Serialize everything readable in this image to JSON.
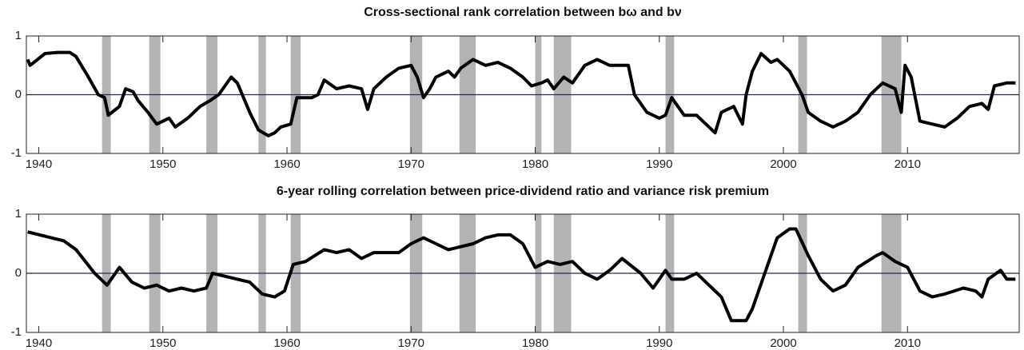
{
  "chart_data": [
    {
      "type": "line",
      "title": "Cross-sectional rank correlation between bω and bν",
      "x": [
        1939.1,
        1939.3,
        1940.5,
        1941.5,
        1942.5,
        1943,
        1944,
        1944.8,
        1945.3,
        1945.6,
        1946.5,
        1947,
        1947.6,
        1948,
        1948.8,
        1949.5,
        1950.5,
        1951,
        1952,
        1953,
        1953.8,
        1954.5,
        1955.5,
        1956,
        1957,
        1957.7,
        1958.5,
        1959,
        1959.5,
        1960.3,
        1960.8,
        1962,
        1962.5,
        1963,
        1964,
        1965,
        1966,
        1966.5,
        1967,
        1968,
        1969,
        1970,
        1970.5,
        1971,
        1971.5,
        1972,
        1973,
        1973.5,
        1974,
        1975,
        1976,
        1977,
        1978,
        1979,
        1979.7,
        1980.5,
        1981,
        1981.5,
        1982.3,
        1983,
        1984,
        1985,
        1986,
        1987.5,
        1988,
        1989,
        1990,
        1990.5,
        1991,
        1992,
        1993,
        1994,
        1994.5,
        1995,
        1996,
        1996.7,
        1997,
        1997.5,
        1998.2,
        1999,
        1999.5,
        2000.5,
        2001.5,
        2002,
        2003,
        2004,
        2005,
        2006,
        2007,
        2008,
        2009,
        2009.5,
        2009.8,
        2010.3,
        2011,
        2012,
        2013,
        2014,
        2015,
        2016,
        2016.5,
        2017,
        2018,
        2018.7
      ],
      "values": [
        0.6,
        0.5,
        0.7,
        0.72,
        0.72,
        0.65,
        0.3,
        0.0,
        -0.05,
        -0.35,
        -0.2,
        0.1,
        0.05,
        -0.1,
        -0.3,
        -0.5,
        -0.4,
        -0.55,
        -0.4,
        -0.2,
        -0.1,
        0.0,
        0.3,
        0.2,
        -0.3,
        -0.6,
        -0.7,
        -0.65,
        -0.55,
        -0.5,
        -0.05,
        -0.05,
        0.0,
        0.25,
        0.1,
        0.15,
        0.1,
        -0.25,
        0.1,
        0.3,
        0.45,
        0.5,
        0.3,
        -0.05,
        0.1,
        0.3,
        0.4,
        0.3,
        0.45,
        0.6,
        0.5,
        0.55,
        0.45,
        0.3,
        0.15,
        0.2,
        0.25,
        0.1,
        0.3,
        0.2,
        0.5,
        0.6,
        0.5,
        0.5,
        0.0,
        -0.3,
        -0.4,
        -0.35,
        -0.05,
        -0.35,
        -0.35,
        -0.55,
        -0.65,
        -0.3,
        -0.2,
        -0.5,
        0.0,
        0.4,
        0.7,
        0.55,
        0.6,
        0.4,
        0.0,
        -0.3,
        -0.45,
        -0.55,
        -0.45,
        -0.3,
        0.0,
        0.2,
        0.1,
        -0.3,
        0.5,
        0.3,
        -0.45,
        -0.5,
        -0.55,
        -0.4,
        -0.2,
        -0.15,
        -0.25,
        0.15,
        0.2,
        0.2
      ],
      "color": "#000000",
      "xlim": [
        1939,
        2019
      ],
      "ylim": [
        -1,
        1
      ],
      "xticks": [
        1940,
        1950,
        1960,
        1970,
        1980,
        1990,
        2000,
        2010
      ],
      "yticks": [
        -1,
        0,
        1
      ],
      "hline": 0,
      "hline_color": "#1f2f5a",
      "shade_color": "#b3b3b3",
      "shaded_periods": [
        [
          1945.1,
          1945.8
        ],
        [
          1948.9,
          1949.8
        ],
        [
          1953.5,
          1954.4
        ],
        [
          1957.7,
          1958.3
        ],
        [
          1960.3,
          1961.1
        ],
        [
          1969.9,
          1970.9
        ],
        [
          1973.9,
          1975.2
        ],
        [
          1980.0,
          1980.5
        ],
        [
          1981.5,
          1982.9
        ],
        [
          1990.5,
          1991.2
        ],
        [
          2001.2,
          2001.9
        ],
        [
          2007.9,
          2009.5
        ]
      ]
    },
    {
      "type": "line",
      "title": "6-year rolling correlation between price-dividend ratio and variance risk premium",
      "x": [
        1939.1,
        1941,
        1942,
        1943,
        1944.5,
        1945.5,
        1946.5,
        1947.5,
        1948.5,
        1949.5,
        1950.5,
        1951.5,
        1952.5,
        1953.5,
        1954,
        1955,
        1956,
        1957,
        1958,
        1959,
        1959.8,
        1960.5,
        1961.5,
        1963,
        1964,
        1965,
        1966,
        1967,
        1968,
        1969,
        1970,
        1971,
        1972,
        1973,
        1974,
        1975,
        1976,
        1977,
        1978,
        1979,
        1980,
        1981,
        1982,
        1983,
        1984,
        1985,
        1986,
        1987,
        1988.5,
        1989.5,
        1990.5,
        1991,
        1992,
        1993,
        1994,
        1995,
        1995.8,
        1997,
        1997.5,
        1998.5,
        1999.5,
        2000.5,
        2001,
        2002,
        2003,
        2004,
        2005,
        2006,
        2007.5,
        2008,
        2009,
        2010,
        2011,
        2012,
        2013,
        2014.5,
        2015.5,
        2016,
        2016.5,
        2017.5,
        2018,
        2018.7
      ],
      "values": [
        0.7,
        0.6,
        0.55,
        0.4,
        0.0,
        -0.2,
        0.1,
        -0.15,
        -0.25,
        -0.2,
        -0.3,
        -0.25,
        -0.3,
        -0.25,
        0.0,
        -0.05,
        -0.1,
        -0.15,
        -0.35,
        -0.4,
        -0.3,
        0.15,
        0.2,
        0.4,
        0.35,
        0.4,
        0.25,
        0.35,
        0.35,
        0.35,
        0.5,
        0.6,
        0.5,
        0.4,
        0.45,
        0.5,
        0.6,
        0.65,
        0.65,
        0.5,
        0.1,
        0.2,
        0.15,
        0.2,
        0.0,
        -0.1,
        0.05,
        0.25,
        0.0,
        -0.25,
        0.05,
        -0.1,
        -0.1,
        0.0,
        -0.2,
        -0.4,
        -0.8,
        -0.8,
        -0.6,
        0.0,
        0.6,
        0.75,
        0.75,
        0.3,
        -0.1,
        -0.3,
        -0.2,
        0.1,
        0.3,
        0.35,
        0.2,
        0.1,
        -0.3,
        -0.4,
        -0.35,
        -0.25,
        -0.3,
        -0.4,
        -0.1,
        0.05,
        -0.1,
        -0.1
      ],
      "color": "#000000",
      "xlim": [
        1939,
        2019
      ],
      "ylim": [
        -1,
        1
      ],
      "xticks": [
        1940,
        1950,
        1960,
        1970,
        1980,
        1990,
        2000,
        2010
      ],
      "yticks": [
        -1,
        0,
        1
      ],
      "hline": 0,
      "hline_color": "#1f2f5a",
      "shade_color": "#b3b3b3",
      "shaded_periods": [
        [
          1945.1,
          1945.8
        ],
        [
          1948.9,
          1949.8
        ],
        [
          1953.5,
          1954.4
        ],
        [
          1957.7,
          1958.3
        ],
        [
          1960.3,
          1961.1
        ],
        [
          1969.9,
          1970.9
        ],
        [
          1973.9,
          1975.2
        ],
        [
          1980.0,
          1980.5
        ],
        [
          1981.5,
          1982.9
        ],
        [
          1990.5,
          1991.2
        ],
        [
          2001.2,
          2001.9
        ],
        [
          2007.9,
          2009.5
        ]
      ]
    }
  ]
}
